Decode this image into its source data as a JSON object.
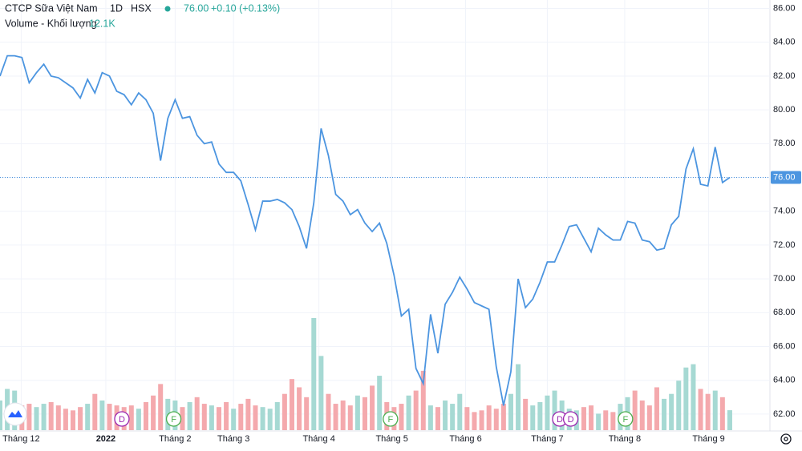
{
  "chart_data": {
    "type": "line",
    "symbol": "CTCP Sữa Việt Nam",
    "interval": "1D",
    "exchange": "HSX",
    "price_text": "76.00",
    "change_text": "+0.10 (+0.13%)",
    "volume_title": "Volume - Khối lượng",
    "volume_text": "12.1K",
    "color": "#4c95e0",
    "up_color": "#a6d9d3",
    "down_color": "#f4a9ad",
    "values": [
      82,
      83.2,
      83.2,
      83.1,
      81.6,
      82.2,
      82.7,
      82,
      81.9,
      81.6,
      81.3,
      80.7,
      81.8,
      81,
      82.2,
      82,
      81.1,
      80.9,
      80.3,
      81,
      80.6,
      79.8,
      77,
      79.5,
      80.6,
      79.5,
      79.6,
      78.5,
      78,
      78.1,
      76.8,
      76.3,
      76.3,
      75.8,
      74.4,
      72.9,
      74.6,
      74.6,
      74.7,
      74.5,
      74.1,
      73.1,
      71.8,
      74.5,
      78.9,
      77.3,
      75,
      74.6,
      73.8,
      74.1,
      73.3,
      72.8,
      73.3,
      72.1,
      70.2,
      67.8,
      68.2,
      64.7,
      63.8,
      67.9,
      65.6,
      68.5,
      69.2,
      70.1,
      69.4,
      68.6,
      68.4,
      68.2,
      64.8,
      62.5,
      64.5,
      70,
      68.3,
      68.8,
      69.8,
      71,
      71,
      72,
      73.1,
      73.2,
      72.4,
      71.6,
      73,
      72.6,
      72.3,
      72.3,
      73.4,
      73.3,
      72.3,
      72.2,
      71.7,
      71.8,
      73.2,
      73.7,
      76.5,
      77.7,
      75.6,
      75.5,
      77.8,
      75.7,
      76
    ],
    "volume": [
      18,
      25,
      24,
      15,
      16,
      14,
      16,
      17,
      15,
      13,
      12,
      14,
      16,
      22,
      18,
      16,
      15,
      14,
      15,
      13,
      17,
      21,
      28,
      19,
      18,
      14,
      17,
      20,
      16,
      15,
      14,
      17,
      13,
      16,
      19,
      15,
      14,
      13,
      17,
      22,
      31,
      26,
      20,
      68,
      45,
      22,
      16,
      18,
      15,
      21,
      20,
      27,
      33,
      17,
      14,
      16,
      21,
      24,
      36,
      15,
      14,
      18,
      16,
      22,
      14,
      11,
      12,
      15,
      13,
      16,
      22,
      40,
      19,
      15,
      17,
      21,
      24,
      18,
      13,
      12,
      14,
      15,
      10,
      12,
      11,
      16,
      20,
      24,
      18,
      15,
      26,
      19,
      22,
      30,
      38,
      40,
      25,
      22,
      24,
      20,
      12.1
    ],
    "last_price": {
      "value": 76,
      "label": "76.00"
    },
    "xlim": [
      0,
      105.5
    ],
    "xticks": [
      {
        "value": 2.9,
        "label": "Tháng 12"
      },
      {
        "value": 14.5,
        "label": "2022"
      },
      {
        "value": 24,
        "label": "Tháng 2"
      },
      {
        "value": 32,
        "label": "Tháng 3"
      },
      {
        "value": 43.7,
        "label": "Tháng 4"
      },
      {
        "value": 53.7,
        "label": "Tháng 5"
      },
      {
        "value": 63.8,
        "label": "Tháng 6"
      },
      {
        "value": 75,
        "label": "Tháng 7"
      },
      {
        "value": 85.6,
        "label": "Tháng 8"
      },
      {
        "value": 97.1,
        "label": "Tháng 9"
      }
    ],
    "ylim": [
      61,
      86.5
    ],
    "yticks": [
      {
        "value": 62,
        "label": "62.00"
      },
      {
        "value": 64,
        "label": "64.00"
      },
      {
        "value": 66,
        "label": "66.00"
      },
      {
        "value": 68,
        "label": "68.00"
      },
      {
        "value": 70,
        "label": "70.00"
      },
      {
        "value": 72,
        "label": "72.00"
      },
      {
        "value": 74,
        "label": "74.00"
      },
      {
        "value": 76,
        "label": "76.00"
      },
      {
        "value": 78,
        "label": "78.00"
      },
      {
        "value": 80,
        "label": "80.00"
      },
      {
        "value": 82,
        "label": "82.00"
      },
      {
        "value": 84,
        "label": "84.00"
      },
      {
        "value": 86,
        "label": "86.00"
      }
    ],
    "events": [
      {
        "x": 16.7,
        "label": "D"
      },
      {
        "x": 23.8,
        "label": "F"
      },
      {
        "x": 53.5,
        "label": "F"
      },
      {
        "x": 76.7,
        "label": "D"
      },
      {
        "x": 78.2,
        "label": "D"
      },
      {
        "x": 85.7,
        "label": "F"
      }
    ],
    "grid": true
  }
}
